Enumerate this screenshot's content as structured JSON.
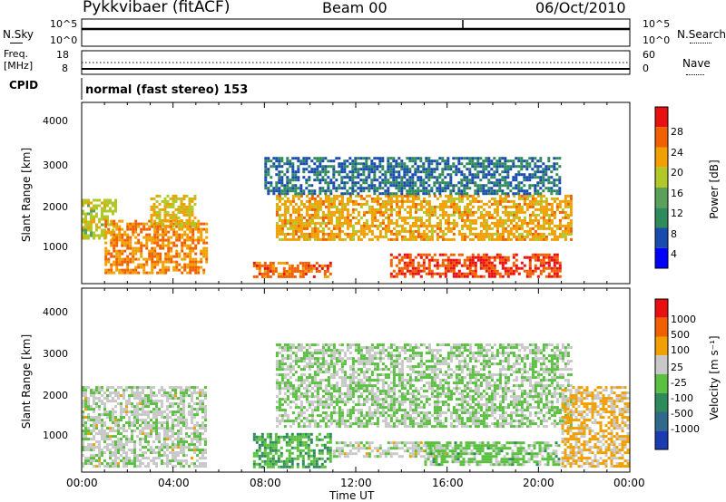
{
  "header": {
    "station": "Pykkvibaer (fitACF)",
    "beam": "Beam 00",
    "date": "06/Oct/2010"
  },
  "noise_panel": {
    "left_label": "N.Sky",
    "right_label": "N.Search",
    "left_ticks": [
      "10^5",
      "10^0"
    ],
    "right_ticks": [
      "10^5",
      "10^0"
    ]
  },
  "freq_panel": {
    "left_label_1": "Freq.",
    "left_label_2": "[MHz]",
    "right_label": "Nave",
    "left_ticks": [
      "18",
      "8"
    ],
    "right_ticks": [
      "60",
      "0"
    ]
  },
  "cpid": {
    "label": "CPID",
    "mode_text": "normal (fast stereo) 153"
  },
  "x_axis": {
    "title": "Time UT",
    "ticks": [
      "00:00",
      "04:00",
      "08:00",
      "12:00",
      "16:00",
      "20:00",
      "00:00"
    ]
  },
  "power_panel": {
    "ylabel": "Slant Range [km]",
    "yticks": [
      "4000",
      "3000",
      "2000",
      "1000"
    ],
    "colorbar_title": "Power [dB]",
    "colorbar_labels": [
      "28",
      "24",
      "20",
      "16",
      "12",
      "8",
      "4"
    ],
    "colors": [
      "#0000ff",
      "#1a4cb0",
      "#2f8a5c",
      "#5aa05a",
      "#b0c828",
      "#f0a000",
      "#f06000",
      "#e81010"
    ]
  },
  "velocity_panel": {
    "ylabel": "Slant Range [km]",
    "yticks": [
      "4000",
      "3000",
      "2000",
      "1000"
    ],
    "colorbar_title": "Velocity [m s⁻¹]",
    "colorbar_labels": [
      "1000",
      "500",
      "100",
      "25",
      "-25",
      "-100",
      "-500",
      "-1000"
    ],
    "colors": [
      "#1a3cb0",
      "#2f6a8a",
      "#2f8a5c",
      "#5ac040",
      "#c8c8c8",
      "#f0a000",
      "#f06000",
      "#e81010"
    ]
  },
  "chart_data": {
    "type": "heatmap",
    "title": "Pykkvibaer (fitACF) Beam 00 06/Oct/2010",
    "xlabel": "Time UT",
    "ylabel": "Slant Range [km]",
    "xlim_hours": [
      0,
      24
    ],
    "ylim_km": [
      180,
      4500
    ],
    "panels": [
      {
        "name": "Power [dB]",
        "zlim": [
          0,
          32
        ],
        "echo_regions": [
          {
            "t_start": 0.0,
            "t_end": 1.5,
            "range_min": 1200,
            "range_max": 2200,
            "value": 18
          },
          {
            "t_start": 1.0,
            "t_end": 5.5,
            "range_min": 400,
            "range_max": 1700,
            "value": 24
          },
          {
            "t_start": 3.0,
            "t_end": 5.0,
            "range_min": 1500,
            "range_max": 2300,
            "value": 20
          },
          {
            "t_start": 7.5,
            "t_end": 11.0,
            "range_min": 300,
            "range_max": 700,
            "value": 26
          },
          {
            "t_start": 8.5,
            "t_end": 21.5,
            "range_min": 1200,
            "range_max": 2300,
            "value": 22
          },
          {
            "t_start": 13.5,
            "t_end": 21.0,
            "range_min": 300,
            "range_max": 900,
            "value": 28
          },
          {
            "t_start": 8.0,
            "t_end": 21.0,
            "range_min": 2300,
            "range_max": 3200,
            "value": 8
          }
        ]
      },
      {
        "name": "Velocity [m s-1]",
        "zlim": [
          -1000,
          1000
        ],
        "echo_regions": [
          {
            "t_start": 0.0,
            "t_end": 5.5,
            "range_min": 300,
            "range_max": 2200,
            "value": 80
          },
          {
            "t_start": 8.5,
            "t_end": 21.5,
            "range_min": 1200,
            "range_max": 3200,
            "value": 0
          },
          {
            "t_start": 7.5,
            "t_end": 11.0,
            "range_min": 300,
            "range_max": 1100,
            "value": -200
          },
          {
            "t_start": 11.0,
            "t_end": 16.0,
            "range_min": 500,
            "range_max": 900,
            "value": 100
          },
          {
            "t_start": 15.0,
            "t_end": 21.0,
            "range_min": 300,
            "range_max": 900,
            "value": -100
          },
          {
            "t_start": 21.0,
            "t_end": 24.0,
            "range_min": 300,
            "range_max": 2200,
            "value": 300
          }
        ]
      }
    ]
  }
}
